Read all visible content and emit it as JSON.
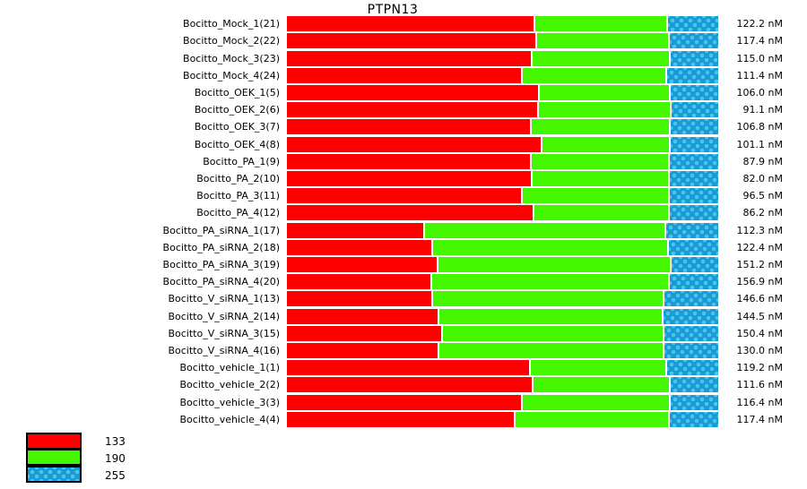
{
  "title": "PTPN13",
  "unit": "nM",
  "colors": {
    "red": "#ff0000",
    "green": "#44f700",
    "blue_base": "#189ad3",
    "blue_dot": "#4cc2ef",
    "background": "#ffffff"
  },
  "chart_data": {
    "type": "bar",
    "orientation": "horizontal",
    "stacked": true,
    "title": "PTPN13",
    "grid": false,
    "legend_position": "bottom-left",
    "categories": [
      "Bocitto_Mock_1(21)",
      "Bocitto_Mock_2(22)",
      "Bocitto_Mock_3(23)",
      "Bocitto_Mock_4(24)",
      "Bocitto_OEK_1(5)",
      "Bocitto_OEK_2(6)",
      "Bocitto_OEK_3(7)",
      "Bocitto_OEK_4(8)",
      "Bocitto_PA_1(9)",
      "Bocitto_PA_2(10)",
      "Bocitto_PA_3(11)",
      "Bocitto_PA_4(12)",
      "Bocitto_PA_siRNA_1(17)",
      "Bocitto_PA_siRNA_2(18)",
      "Bocitto_PA_siRNA_3(19)",
      "Bocitto_PA_siRNA_4(20)",
      "Bocitto_V_siRNA_1(13)",
      "Bocitto_V_siRNA_2(14)",
      "Bocitto_V_siRNA_3(15)",
      "Bocitto_V_siRNA_4(16)",
      "Bocitto_vehicle_1(1)",
      "Bocitto_vehicle_2(2)",
      "Bocitto_vehicle_3(3)",
      "Bocitto_vehicle_4(4)"
    ],
    "values_nM": [
      122.2,
      117.4,
      115.0,
      111.4,
      106.0,
      91.1,
      106.8,
      101.1,
      87.9,
      82.0,
      96.5,
      86.2,
      112.3,
      122.4,
      151.2,
      156.9,
      146.6,
      144.5,
      150.4,
      130.0,
      119.2,
      111.6,
      116.4,
      117.4
    ],
    "series": [
      {
        "name": "133",
        "color": "#ff0000",
        "percent_widths": [
          57.6,
          58.0,
          57.0,
          54.7,
          58.8,
          58.4,
          56.8,
          59.3,
          56.8,
          57.0,
          54.7,
          57.4,
          31.8,
          33.7,
          35.1,
          33.5,
          33.7,
          35.3,
          36.0,
          35.3,
          56.5,
          57.2,
          54.7,
          53.0
        ]
      },
      {
        "name": "190",
        "color": "#44f700",
        "percent_widths": [
          30.6,
          30.6,
          31.8,
          33.3,
          30.1,
          30.6,
          32.0,
          29.5,
          31.8,
          31.6,
          33.9,
          31.2,
          56.1,
          54.7,
          54.1,
          55.1,
          53.8,
          52.0,
          51.5,
          52.2,
          31.6,
          31.6,
          34.1,
          35.6
        ]
      },
      {
        "name": "255",
        "color": "#189ad3",
        "pattern": "dotted-crosshatch",
        "percent_widths": [
          11.8,
          11.4,
          11.2,
          12.0,
          11.1,
          11.0,
          11.2,
          11.2,
          11.4,
          11.4,
          11.4,
          11.4,
          12.1,
          11.6,
          10.8,
          11.4,
          12.5,
          12.7,
          12.5,
          12.5,
          11.9,
          11.2,
          11.2,
          11.4
        ]
      }
    ],
    "legend": [
      {
        "label": "133"
      },
      {
        "label": "190"
      },
      {
        "label": "255"
      }
    ]
  }
}
